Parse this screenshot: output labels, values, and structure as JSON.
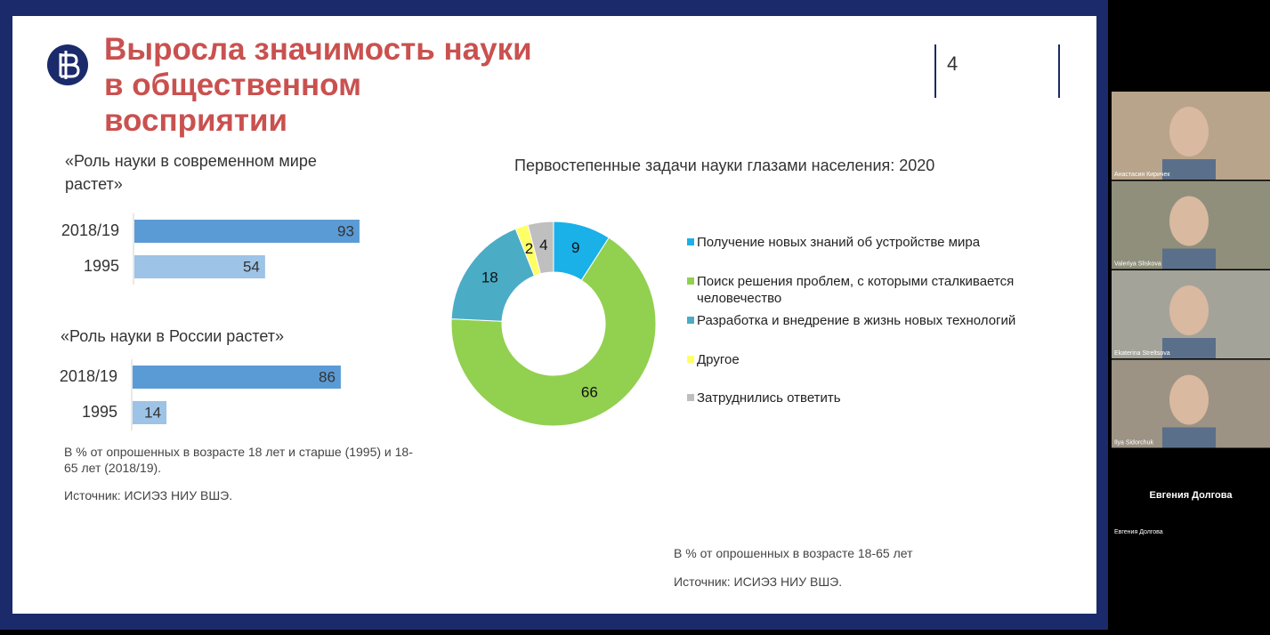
{
  "slide": {
    "title": "Выросла значимость науки в общественном восприятии",
    "page_number": "4",
    "bar_charts": [
      {
        "title": "«Роль науки в современном мире растет»",
        "categories": [
          "2018/19",
          "1995"
        ],
        "values": [
          93,
          54
        ],
        "colors": [
          "#5b9bd5",
          "#9dc3e6"
        ]
      },
      {
        "title": "«Роль науки в России растет»",
        "categories": [
          "2018/19",
          "1995"
        ],
        "values": [
          86,
          14
        ],
        "colors": [
          "#5b9bd5",
          "#9dc3e6"
        ]
      }
    ],
    "left_note": "В % от опрошенных в возрасте 18 лет и старше (1995) и 18-65 лет (2018/19).",
    "left_source": "Источник: ИСИЭЗ НИУ ВШЭ.",
    "donut": {
      "type": "donut",
      "title": "Первостепенные задачи науки глазами населения: 2020",
      "categories": [
        "Получение новых знаний об устройстве мира",
        "Поиск решения проблем, с которыми сталкивается человечество",
        "Разработка и внедрение в жизнь новых технологий",
        "Другое",
        "Затруднились ответить"
      ],
      "values": [
        9,
        66,
        18,
        2,
        4
      ],
      "colors": [
        "#1ab0e8",
        "#92d050",
        "#4bacc6",
        "#ffff66",
        "#bfbfbf"
      ]
    },
    "right_note": "В % от опрошенных в возрасте 18-65 лет",
    "right_source": "Источник: ИСИЭЗ НИУ ВШЭ."
  },
  "participants": [
    {
      "name": "Анастасия Киричек"
    },
    {
      "name": "Valeriya Sliskova"
    },
    {
      "name": "Ekaterina Streltsova"
    },
    {
      "name": "Ilya Sidorchuk"
    },
    {
      "name": "Евгения Долгова"
    }
  ]
}
